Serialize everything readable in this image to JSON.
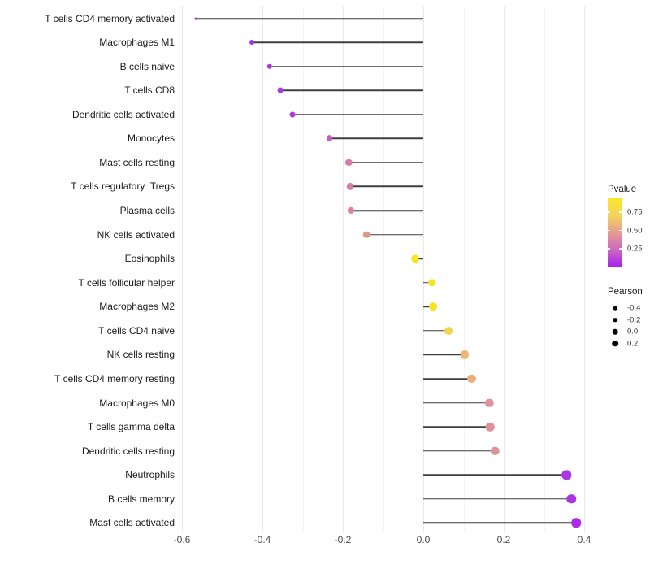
{
  "chart_data": {
    "type": "lollipop",
    "orientation": "horizontal",
    "xlabel": "",
    "ylabel": "",
    "x_ticks": [
      {
        "value": -0.6,
        "label": "-0.6"
      },
      {
        "value": -0.4,
        "label": "-0.4"
      },
      {
        "value": -0.2,
        "label": "-0.2"
      },
      {
        "value": 0.0,
        "label": "0.0"
      },
      {
        "value": 0.2,
        "label": "0.2"
      },
      {
        "value": 0.4,
        "label": "0.4"
      }
    ],
    "x_minor_ticks": [
      -0.5,
      -0.3,
      -0.1,
      0.1,
      0.3
    ],
    "xlim": [
      -0.62,
      0.43
    ],
    "grid": "vertical-only",
    "baseline_value": 0.0,
    "rows": [
      {
        "label": "T cells CD4 memory activated",
        "pearson": -0.565,
        "dot_color": "#992FE6"
      },
      {
        "label": "Macrophages M1",
        "pearson": -0.426,
        "dot_color": "#A133E6"
      },
      {
        "label": "B cells naive",
        "pearson": -0.382,
        "dot_color": "#A836E3"
      },
      {
        "label": "T cells CD8",
        "pearson": -0.356,
        "dot_color": "#AB39E0"
      },
      {
        "label": "Dendritic cells activated",
        "pearson": -0.325,
        "dot_color": "#AC3BE0"
      },
      {
        "label": "Monocytes",
        "pearson": -0.233,
        "dot_color": "#C45EC2"
      },
      {
        "label": "Mast cells resting",
        "pearson": -0.185,
        "dot_color": "#D47FAB"
      },
      {
        "label": "T cells regulatory  Tregs",
        "pearson": -0.182,
        "dot_color": "#D47FA9"
      },
      {
        "label": "Plasma cells",
        "pearson": -0.18,
        "dot_color": "#D683A2"
      },
      {
        "label": "NK cells activated",
        "pearson": -0.141,
        "dot_color": "#E29A83"
      },
      {
        "label": "Eosinophils",
        "pearson": -0.021,
        "dot_color": "#F6E51F"
      },
      {
        "label": "T cells follicular helper",
        "pearson": 0.022,
        "dot_color": "#F8E31D"
      },
      {
        "label": "Macrophages M2",
        "pearson": 0.025,
        "dot_color": "#F7E41E"
      },
      {
        "label": "T cells CD4 naive",
        "pearson": 0.062,
        "dot_color": "#F2D54E"
      },
      {
        "label": "NK cells resting",
        "pearson": 0.103,
        "dot_color": "#EDB573"
      },
      {
        "label": "T cells CD4 memory resting",
        "pearson": 0.12,
        "dot_color": "#EAAD7B"
      },
      {
        "label": "Macrophages M0",
        "pearson": 0.164,
        "dot_color": "#E0929A"
      },
      {
        "label": "T cells gamma delta",
        "pearson": 0.166,
        "dot_color": "#E09299"
      },
      {
        "label": "Dendritic cells resting",
        "pearson": 0.178,
        "dot_color": "#DE909B"
      },
      {
        "label": "Neutrophils",
        "pearson": 0.356,
        "dot_color": "#A935E3"
      },
      {
        "label": "B cells memory",
        "pearson": 0.368,
        "dot_color": "#AA32E5"
      },
      {
        "label": "Mast cells activated",
        "pearson": 0.38,
        "dot_color": "#AC2DE8"
      }
    ],
    "legend_pvalue": {
      "title": "Pvalue",
      "tick_labels": [
        "0.75",
        "0.50",
        "0.25"
      ],
      "gradient_top_to_bottom": [
        "#FBE72A",
        "#F5D25F",
        "#E59C92",
        "#CB67C1",
        "#A51FEF"
      ]
    },
    "legend_pearson": {
      "title": "Pearson",
      "entries": [
        {
          "label": "-0.4",
          "diameter": 4.6
        },
        {
          "label": "-0.2",
          "diameter": 5.6
        },
        {
          "label": "0.0",
          "diameter": 6.6
        },
        {
          "label": "0.2",
          "diameter": 7.6
        }
      ],
      "dot_color": "#000000"
    },
    "segment_color": "#3f3f3f",
    "background_color": "#ffffff"
  }
}
